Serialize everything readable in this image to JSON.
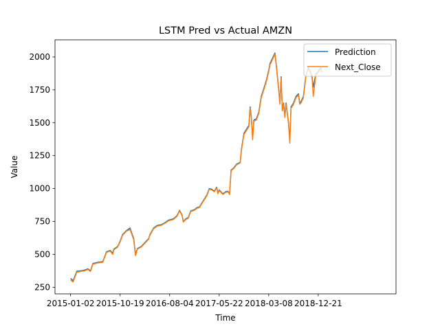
{
  "chart_data": {
    "type": "line",
    "title": "LSTM Pred vs Actual AMZN",
    "xlabel": "Time",
    "ylabel": "Value",
    "x_tick_labels": [
      "2015-01-02",
      "2015-10-19",
      "2016-08-04",
      "2017-05-22",
      "2018-03-08",
      "2018-12-21"
    ],
    "y_ticks": [
      250,
      500,
      750,
      1000,
      1250,
      1500,
      1750,
      2000
    ],
    "ylim": [
      200,
      2130
    ],
    "x_index_range": [
      -63,
      1314
    ],
    "grid": false,
    "legend_position": "top-right",
    "series": [
      {
        "name": "Prediction",
        "color": "#1f77b4",
        "points": [
          [
            0,
            318
          ],
          [
            10,
            300
          ],
          [
            25,
            372
          ],
          [
            40,
            375
          ],
          [
            55,
            380
          ],
          [
            70,
            390
          ],
          [
            80,
            375
          ],
          [
            90,
            430
          ],
          [
            110,
            440
          ],
          [
            130,
            445
          ],
          [
            145,
            520
          ],
          [
            160,
            530
          ],
          [
            170,
            510
          ],
          [
            175,
            540
          ],
          [
            190,
            560
          ],
          [
            200,
            600
          ],
          [
            210,
            650
          ],
          [
            225,
            680
          ],
          [
            240,
            700
          ],
          [
            255,
            620
          ],
          [
            262,
            500
          ],
          [
            270,
            545
          ],
          [
            285,
            560
          ],
          [
            295,
            580
          ],
          [
            305,
            600
          ],
          [
            315,
            620
          ],
          [
            320,
            650
          ],
          [
            335,
            700
          ],
          [
            350,
            720
          ],
          [
            365,
            725
          ],
          [
            380,
            740
          ],
          [
            395,
            760
          ],
          [
            415,
            770
          ],
          [
            430,
            795
          ],
          [
            440,
            835
          ],
          [
            450,
            800
          ],
          [
            455,
            750
          ],
          [
            465,
            770
          ],
          [
            475,
            780
          ],
          [
            485,
            830
          ],
          [
            500,
            840
          ],
          [
            510,
            855
          ],
          [
            520,
            860
          ],
          [
            530,
            890
          ],
          [
            550,
            950
          ],
          [
            560,
            1000
          ],
          [
            570,
            995
          ],
          [
            580,
            980
          ],
          [
            590,
            1010
          ],
          [
            595,
            965
          ],
          [
            600,
            990
          ],
          [
            615,
            960
          ],
          [
            625,
            975
          ],
          [
            635,
            980
          ],
          [
            642,
            960
          ],
          [
            648,
            1140
          ],
          [
            660,
            1160
          ],
          [
            670,
            1185
          ],
          [
            685,
            1200
          ],
          [
            690,
            1300
          ],
          [
            700,
            1420
          ],
          [
            710,
            1450
          ],
          [
            720,
            1480
          ],
          [
            725,
            1620
          ],
          [
            730,
            1545
          ],
          [
            735,
            1380
          ],
          [
            740,
            1520
          ],
          [
            750,
            1530
          ],
          [
            760,
            1580
          ],
          [
            770,
            1700
          ],
          [
            780,
            1760
          ],
          [
            790,
            1820
          ],
          [
            800,
            1900
          ],
          [
            805,
            1950
          ],
          [
            815,
            1990
          ],
          [
            825,
            2030
          ],
          [
            830,
            1950
          ],
          [
            840,
            1760
          ],
          [
            845,
            1650
          ],
          [
            850,
            1850
          ],
          [
            855,
            1600
          ],
          [
            860,
            1650
          ],
          [
            865,
            1550
          ],
          [
            870,
            1650
          ],
          [
            880,
            1500
          ],
          [
            885,
            1360
          ],
          [
            890,
            1620
          ],
          [
            900,
            1650
          ],
          [
            910,
            1700
          ],
          [
            920,
            1720
          ],
          [
            925,
            1650
          ],
          [
            930,
            1660
          ],
          [
            940,
            1700
          ],
          [
            950,
            1860
          ],
          [
            960,
            1920
          ],
          [
            970,
            1880
          ],
          [
            975,
            1850
          ],
          [
            980,
            1770
          ],
          [
            990,
            1870
          ],
          [
            1000,
            1890
          ],
          [
            1010,
            1920
          ],
          [
            1015,
            1890
          ]
        ]
      },
      {
        "name": "Next_Close",
        "color": "#ff7f0e",
        "points": [
          [
            0,
            305
          ],
          [
            10,
            290
          ],
          [
            25,
            365
          ],
          [
            40,
            370
          ],
          [
            55,
            375
          ],
          [
            70,
            385
          ],
          [
            80,
            370
          ],
          [
            90,
            425
          ],
          [
            110,
            435
          ],
          [
            130,
            440
          ],
          [
            145,
            515
          ],
          [
            160,
            525
          ],
          [
            170,
            500
          ],
          [
            175,
            535
          ],
          [
            190,
            555
          ],
          [
            200,
            595
          ],
          [
            210,
            645
          ],
          [
            225,
            675
          ],
          [
            240,
            690
          ],
          [
            255,
            610
          ],
          [
            262,
            490
          ],
          [
            270,
            540
          ],
          [
            285,
            555
          ],
          [
            295,
            575
          ],
          [
            305,
            595
          ],
          [
            315,
            615
          ],
          [
            320,
            645
          ],
          [
            335,
            695
          ],
          [
            350,
            715
          ],
          [
            365,
            720
          ],
          [
            380,
            735
          ],
          [
            395,
            755
          ],
          [
            415,
            765
          ],
          [
            430,
            790
          ],
          [
            440,
            830
          ],
          [
            450,
            795
          ],
          [
            455,
            745
          ],
          [
            465,
            765
          ],
          [
            475,
            775
          ],
          [
            485,
            825
          ],
          [
            500,
            835
          ],
          [
            510,
            850
          ],
          [
            520,
            855
          ],
          [
            530,
            885
          ],
          [
            550,
            945
          ],
          [
            560,
            995
          ],
          [
            570,
            990
          ],
          [
            580,
            975
          ],
          [
            590,
            1005
          ],
          [
            595,
            960
          ],
          [
            600,
            985
          ],
          [
            615,
            955
          ],
          [
            625,
            970
          ],
          [
            635,
            975
          ],
          [
            642,
            955
          ],
          [
            648,
            1135
          ],
          [
            660,
            1155
          ],
          [
            670,
            1180
          ],
          [
            685,
            1195
          ],
          [
            690,
            1290
          ],
          [
            700,
            1410
          ],
          [
            710,
            1440
          ],
          [
            720,
            1470
          ],
          [
            725,
            1610
          ],
          [
            730,
            1535
          ],
          [
            735,
            1370
          ],
          [
            740,
            1510
          ],
          [
            750,
            1520
          ],
          [
            760,
            1570
          ],
          [
            770,
            1690
          ],
          [
            780,
            1750
          ],
          [
            790,
            1810
          ],
          [
            800,
            1890
          ],
          [
            805,
            1940
          ],
          [
            815,
            1980
          ],
          [
            825,
            2020
          ],
          [
            830,
            1940
          ],
          [
            840,
            1750
          ],
          [
            845,
            1640
          ],
          [
            850,
            1840
          ],
          [
            855,
            1590
          ],
          [
            860,
            1640
          ],
          [
            865,
            1540
          ],
          [
            870,
            1640
          ],
          [
            880,
            1490
          ],
          [
            885,
            1345
          ],
          [
            890,
            1610
          ],
          [
            900,
            1640
          ],
          [
            910,
            1690
          ],
          [
            920,
            1710
          ],
          [
            925,
            1640
          ],
          [
            930,
            1650
          ],
          [
            940,
            1690
          ],
          [
            950,
            1850
          ],
          [
            960,
            1910
          ],
          [
            970,
            1870
          ],
          [
            975,
            1840
          ],
          [
            980,
            1700
          ],
          [
            990,
            1860
          ],
          [
            1000,
            1880
          ],
          [
            1010,
            1910
          ],
          [
            1015,
            1880
          ]
        ]
      }
    ]
  }
}
